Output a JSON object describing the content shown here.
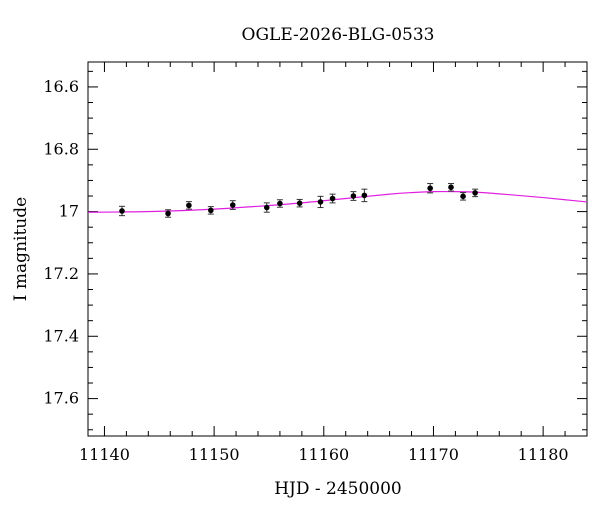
{
  "chart_data": {
    "type": "scatter",
    "title": "OGLE-2026-BLG-0533",
    "xlabel": "HJD - 2450000",
    "ylabel": "I magnitude",
    "xlim": [
      11138.5,
      11184
    ],
    "ylim": [
      17.72,
      16.52
    ],
    "y_inverted": true,
    "x_ticks": [
      11140,
      11150,
      11160,
      11170,
      11180
    ],
    "y_ticks": [
      16.6,
      16.8,
      17,
      17.2,
      17.4,
      17.6
    ],
    "x_tick_labels": [
      "11140",
      "11150",
      "11160",
      "11170",
      "11180"
    ],
    "y_tick_labels": [
      "16.6",
      "16.8",
      "17",
      "17.2",
      "17.4",
      "17.6"
    ],
    "x_minor_step": 2,
    "y_minor_step": 0.05,
    "grid": false,
    "series": [
      {
        "kind": "points",
        "color": "#000000",
        "points": [
          {
            "x": 11141.6,
            "y": 16.998,
            "err": 0.015
          },
          {
            "x": 11145.8,
            "y": 17.006,
            "err": 0.012
          },
          {
            "x": 11147.7,
            "y": 16.98,
            "err": 0.012
          },
          {
            "x": 11149.7,
            "y": 16.996,
            "err": 0.012
          },
          {
            "x": 11151.7,
            "y": 16.979,
            "err": 0.014
          },
          {
            "x": 11154.8,
            "y": 16.987,
            "err": 0.015
          },
          {
            "x": 11156.0,
            "y": 16.974,
            "err": 0.012
          },
          {
            "x": 11157.8,
            "y": 16.973,
            "err": 0.012
          },
          {
            "x": 11159.7,
            "y": 16.969,
            "err": 0.018
          },
          {
            "x": 11160.8,
            "y": 16.958,
            "err": 0.014
          },
          {
            "x": 11162.7,
            "y": 16.95,
            "err": 0.014
          },
          {
            "x": 11163.7,
            "y": 16.948,
            "err": 0.02
          },
          {
            "x": 11169.7,
            "y": 16.925,
            "err": 0.015
          },
          {
            "x": 11171.6,
            "y": 16.922,
            "err": 0.012
          },
          {
            "x": 11172.7,
            "y": 16.951,
            "err": 0.012
          },
          {
            "x": 11173.8,
            "y": 16.94,
            "err": 0.012
          }
        ]
      },
      {
        "kind": "model",
        "color": "#e020e0",
        "x": [
          11138.5,
          11142,
          11146,
          11150,
          11154,
          11158,
          11162,
          11166,
          11168,
          11170,
          11172,
          11174,
          11176,
          11178,
          11180,
          11182,
          11184
        ],
        "y": [
          17.002,
          17.001,
          16.998,
          16.992,
          16.983,
          16.972,
          16.958,
          16.944,
          16.939,
          16.936,
          16.936,
          16.938,
          16.943,
          16.949,
          16.955,
          16.962,
          16.969
        ]
      }
    ]
  }
}
